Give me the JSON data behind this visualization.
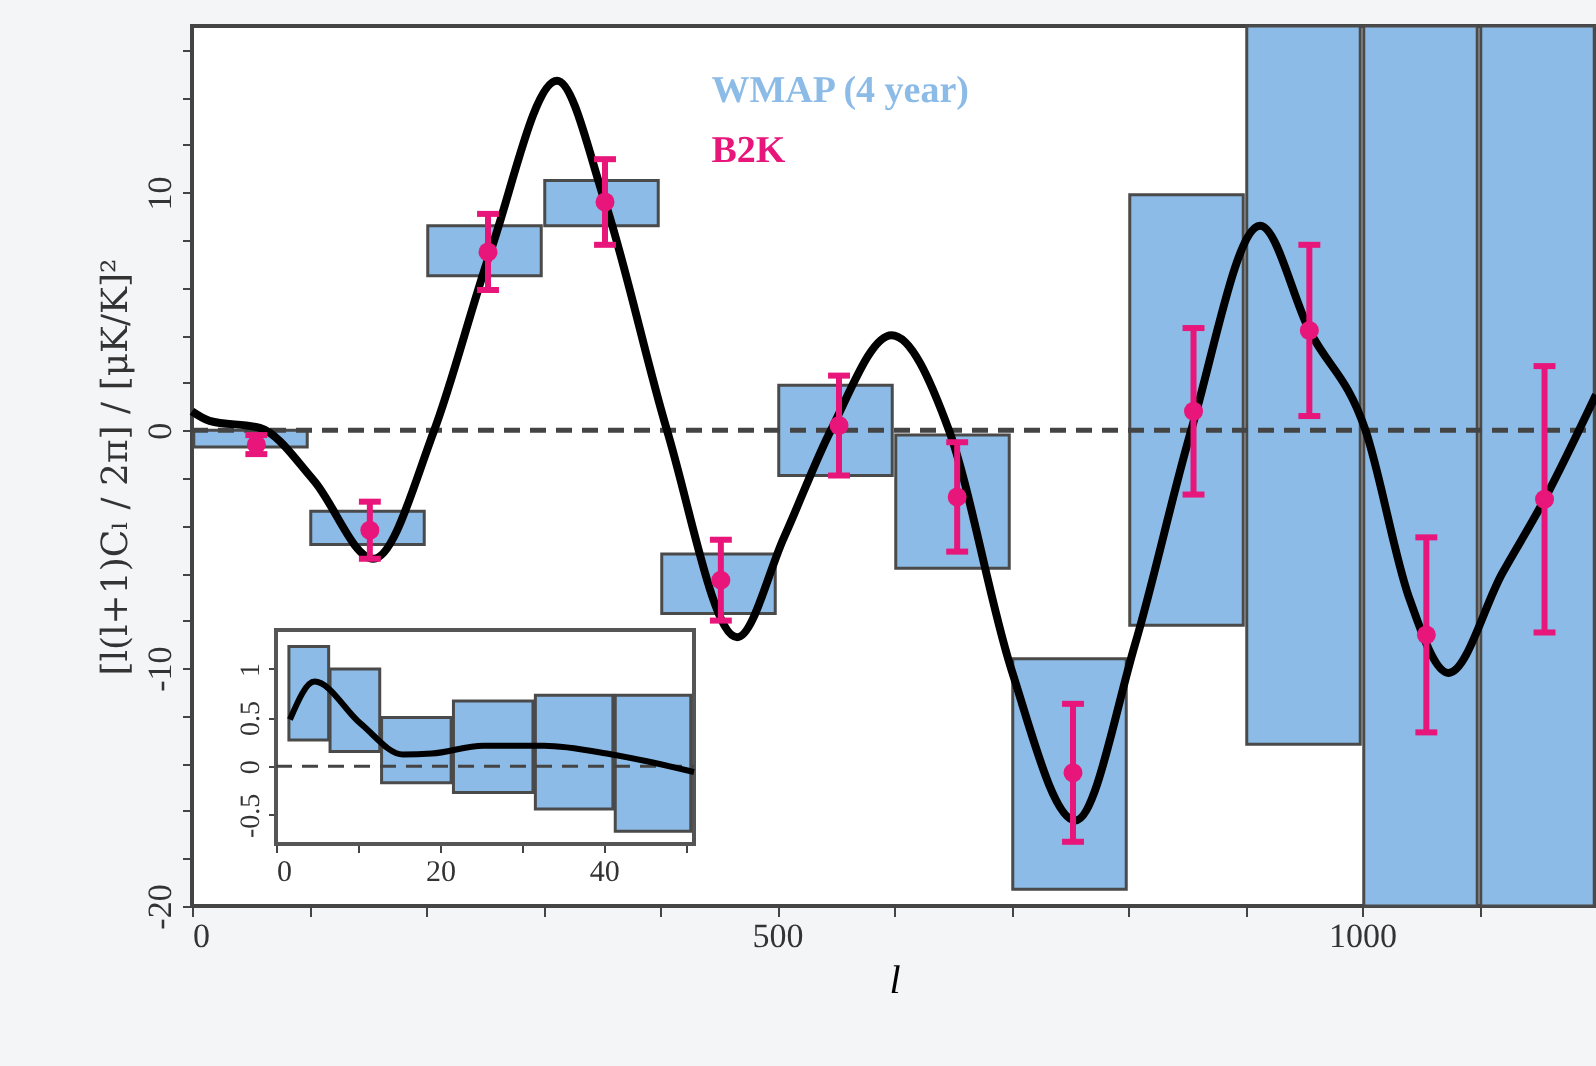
{
  "chart_data": [
    {
      "type": "bar",
      "xlabel": "l",
      "ylabel": "[l(l+1)Cₗ / 2π] / [μK/K]²",
      "xlim": [
        0,
        1200
      ],
      "ylim": [
        -20,
        17
      ],
      "xticks": [
        0,
        {
          "value": 100,
          "label": null
        },
        {
          "value": 200,
          "label": null
        },
        {
          "value": 300,
          "label": null
        },
        {
          "value": 400,
          "label": null
        },
        500,
        {
          "value": 600,
          "label": null
        },
        {
          "value": 700,
          "label": null
        },
        {
          "value": 800,
          "label": null
        },
        {
          "value": 900,
          "label": null
        },
        1000,
        {
          "value": 1100,
          "label": null
        }
      ],
      "yticks": [
        -20,
        {
          "value": -18,
          "label": null
        },
        {
          "value": -16,
          "label": null
        },
        {
          "value": -14,
          "label": null
        },
        {
          "value": -12,
          "label": null
        },
        -10,
        {
          "value": -8,
          "label": null
        },
        {
          "value": -6,
          "label": null
        },
        {
          "value": -4,
          "label": null
        },
        {
          "value": -2,
          "label": null
        },
        0,
        {
          "value": 2,
          "label": null
        },
        {
          "value": 4,
          "label": null
        },
        {
          "value": 6,
          "label": null
        },
        {
          "value": 8,
          "label": null
        },
        10,
        {
          "value": 12,
          "label": null
        },
        {
          "value": 14,
          "label": null
        },
        {
          "value": 16,
          "label": null
        }
      ],
      "legend": "top",
      "ref_lines": [
        {
          "axis": "y",
          "value": 0,
          "line_style": "dashed",
          "color": "#444444"
        }
      ],
      "series": [
        {
          "name": "WMAP (4 year)",
          "color": "#8bbbe6",
          "x": [
            50,
            150,
            250,
            350,
            450,
            550,
            650,
            750,
            850,
            950,
            1050,
            1150
          ],
          "base": [
            -0.7,
            -4.8,
            6.5,
            8.6,
            -7.7,
            -1.9,
            -5.8,
            -19.3,
            -8.2,
            -13.2,
            -20,
            -20
          ],
          "values": [
            0.7,
            1.4,
            2.1,
            1.9,
            2.5,
            3.8,
            5.6,
            9.7,
            18.1,
            30.2,
            37,
            37
          ]
        },
        {
          "type": "line",
          "color": "#000000",
          "x": [
            0,
            15,
            58,
            104,
            155,
            207,
            255,
            312,
            353,
            406,
            466,
            506,
            546,
            598,
            647,
            700,
            755,
            806,
            854,
            913,
            955,
            1003,
            1040,
            1074,
            1120,
            1156,
            1200
          ],
          "values": [
            0.8,
            0.4,
            0.1,
            -2.1,
            -5.4,
            0,
            7.5,
            14.7,
            9.6,
            0,
            -8.7,
            -4.5,
            0,
            4.0,
            0,
            -10,
            -16.4,
            -9,
            0,
            8.6,
            4.2,
            0,
            -7,
            -10.2,
            -6,
            -2.9,
            1.5
          ]
        },
        {
          "name": "B2K",
          "type": "scatter",
          "marker": "circle",
          "color": "#e8157a",
          "x": [
            55,
            152,
            253,
            353,
            452,
            553,
            654,
            753,
            856,
            955,
            1055,
            1156
          ],
          "values": [
            -0.6,
            -4.2,
            7.5,
            9.6,
            -6.3,
            0.2,
            -2.8,
            -14.4,
            0.8,
            4.2,
            -8.6,
            -2.9
          ],
          "errors": [
            0.4,
            1.2,
            1.6,
            1.8,
            1.7,
            2.1,
            2.3,
            2.9,
            3.5,
            3.6,
            4.1,
            5.6
          ]
        }
      ]
    },
    {
      "type": "bar",
      "xlim": [
        0,
        51
      ],
      "ylim": [
        -0.8,
        1.4
      ],
      "xticks": [
        0,
        {
          "value": 10,
          "label": null
        },
        20,
        {
          "value": 30,
          "label": null
        },
        40,
        {
          "value": 50,
          "label": null
        }
      ],
      "yticks": [
        -0.5,
        0,
        0.5,
        1
      ],
      "ref_lines": [
        {
          "axis": "y",
          "value": 0,
          "line_style": "dashed",
          "color": "#444444"
        }
      ],
      "series": [
        {
          "color": "#8bbbe6",
          "x": [
            4,
            9,
            16.5,
            26.5,
            36.5,
            46
          ],
          "base": [
            0.27,
            0.15,
            -0.17,
            -0.27,
            -0.44,
            -0.67
          ],
          "values": [
            0.96,
            0.85,
            0.67,
            0.94,
            1.17,
            1.4
          ]
        },
        {
          "type": "line",
          "color": "#000000",
          "x": [
            1.7,
            4.7,
            10.3,
            15.5,
            19,
            25.3,
            32.7,
            41,
            51
          ],
          "values": [
            0.48,
            0.87,
            0.44,
            0.12,
            0.13,
            0.21,
            0.21,
            0.12,
            -0.06
          ]
        }
      ]
    }
  ]
}
